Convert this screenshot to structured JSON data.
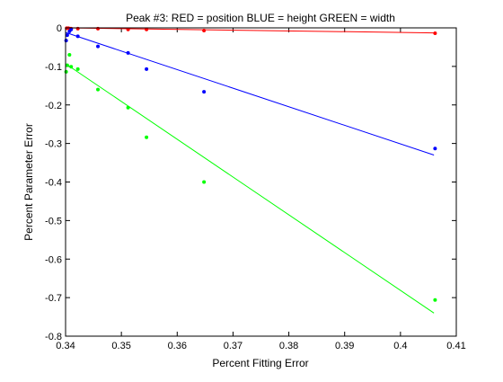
{
  "chart_data": {
    "type": "scatter",
    "title": "Peak #3: RED = position   BLUE = height     GREEN = width",
    "xlabel": "Percent Fitting Error",
    "ylabel": "Percent Parameter Error",
    "xlim": [
      0.34,
      0.41
    ],
    "ylim": [
      -0.8,
      0
    ],
    "grid": false,
    "legend": "none",
    "x_ticks": [
      0.34,
      0.35,
      0.36,
      0.37,
      0.38,
      0.39,
      0.4,
      0.41
    ],
    "x_tick_labels": [
      "0.34",
      "0.35",
      "0.36",
      "0.37",
      "0.38",
      "0.39",
      "0.4",
      "0.41"
    ],
    "y_ticks": [
      0,
      -0.1,
      -0.2,
      -0.3,
      -0.4,
      -0.5,
      -0.6,
      -0.7,
      -0.8
    ],
    "y_tick_labels": [
      "0",
      "-0.1",
      "-0.2",
      "-0.3",
      "-0.4",
      "-0.5",
      "-0.6",
      "-0.7",
      "-0.8"
    ],
    "series": [
      {
        "color": "#ff0000",
        "marker": "point",
        "points": [
          [
            0.3402,
            -0.001
          ],
          [
            0.3405,
            -0.001
          ],
          [
            0.3408,
            -0.002
          ],
          [
            0.341,
            -0.002
          ],
          [
            0.3422,
            -0.002
          ],
          [
            0.3458,
            -0.002
          ],
          [
            0.3512,
            -0.004
          ],
          [
            0.3545,
            -0.004
          ],
          [
            0.3648,
            -0.007
          ],
          [
            0.4062,
            -0.014
          ]
        ],
        "fit": [
          [
            0.34,
            0.0
          ],
          [
            0.406,
            -0.013
          ]
        ]
      },
      {
        "color": "#0000ff",
        "marker": "point",
        "points": [
          [
            0.3401,
            -0.033
          ],
          [
            0.3403,
            -0.019
          ],
          [
            0.3407,
            -0.009
          ],
          [
            0.341,
            -0.004
          ],
          [
            0.3422,
            -0.022
          ],
          [
            0.3458,
            -0.048
          ],
          [
            0.3512,
            -0.065
          ],
          [
            0.3545,
            -0.107
          ],
          [
            0.3648,
            -0.166
          ],
          [
            0.4062,
            -0.313
          ]
        ],
        "fit": [
          [
            0.34,
            -0.012
          ],
          [
            0.406,
            -0.33
          ]
        ]
      },
      {
        "color": "#00ff00",
        "marker": "point",
        "points": [
          [
            0.3401,
            -0.114
          ],
          [
            0.3403,
            -0.097
          ],
          [
            0.3407,
            -0.07
          ],
          [
            0.341,
            -0.101
          ],
          [
            0.3422,
            -0.107
          ],
          [
            0.3458,
            -0.16
          ],
          [
            0.3512,
            -0.207
          ],
          [
            0.3545,
            -0.284
          ],
          [
            0.3648,
            -0.4
          ],
          [
            0.4062,
            -0.706
          ]
        ],
        "fit": [
          [
            0.34,
            -0.093
          ],
          [
            0.406,
            -0.74
          ]
        ]
      }
    ]
  }
}
